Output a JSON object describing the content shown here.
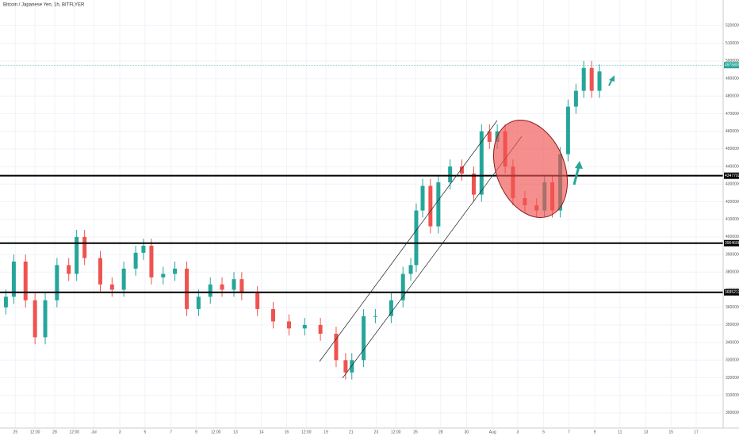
{
  "chart_data": {
    "type": "candlestick",
    "title": "Bitcoin / Japanese Yen, 1h, BITFLYER",
    "x": [
      -0.74,
      -0.12,
      0.8,
      1.54,
      2.34,
      3.26,
      4.18,
      4.8,
      5.42,
      6.65,
      7.57,
      8.49,
      9.42,
      10.03,
      10.65,
      11.57,
      12.49,
      13.42,
      14.34,
      15.26,
      16.18,
      17.11,
      17.72,
      18.95,
      20.18,
      21.42,
      22.65,
      23.88,
      25.11,
      25.85,
      26.34,
      27.26,
      28.18,
      29.42,
      30.34,
      30.95,
      31.38,
      31.88,
      32.49,
      33.11,
      34.03,
      34.95,
      35.88,
      36.49,
      37.11,
      37.72,
      38.34,
      38.95,
      39.88,
      40.8,
      41.42,
      42.03,
      42.65,
      43.26,
      43.88,
      44.49,
      45.11,
      45.72
    ],
    "open": [
      3600000,
      3660000,
      3860000,
      3640000,
      3430000,
      3640000,
      3840000,
      3790000,
      4000000,
      3880000,
      3730000,
      3700000,
      3820000,
      3910000,
      3950000,
      3770000,
      3790000,
      3820000,
      3590000,
      3660000,
      3730000,
      3700000,
      3760000,
      3680000,
      3590000,
      3520000,
      3480000,
      3500000,
      3450000,
      3300000,
      3230000,
      3300000,
      3550000,
      3550000,
      3640000,
      3790000,
      3840000,
      4150000,
      4290000,
      4060000,
      4310000,
      4400000,
      4360000,
      4240000,
      4600000,
      4540000,
      4600000,
      4400000,
      4220000,
      4180000,
      4150000,
      4310000,
      4150000,
      4470000,
      4740000,
      4830000,
      4960000,
      4830000
    ],
    "high": [
      3700000,
      3900000,
      3900000,
      3680000,
      3680000,
      3880000,
      3880000,
      4040000,
      4040000,
      3920000,
      3770000,
      3860000,
      3950000,
      3990000,
      3990000,
      3830000,
      3860000,
      3860000,
      3700000,
      3770000,
      3770000,
      3800000,
      3800000,
      3720000,
      3630000,
      3560000,
      3540000,
      3540000,
      3490000,
      3340000,
      3340000,
      3590000,
      3590000,
      3680000,
      3830000,
      3880000,
      4190000,
      4330000,
      4330000,
      4350000,
      4440000,
      4440000,
      4400000,
      4640000,
      4640000,
      4640000,
      4640000,
      4440000,
      4260000,
      4220000,
      4350000,
      4350000,
      4510000,
      4780000,
      4870000,
      5000000,
      5000000,
      4980000
    ],
    "low": [
      3560000,
      3620000,
      3600000,
      3390000,
      3390000,
      3600000,
      3750000,
      3750000,
      3840000,
      3690000,
      3660000,
      3660000,
      3780000,
      3870000,
      3730000,
      3730000,
      3750000,
      3550000,
      3550000,
      3620000,
      3660000,
      3660000,
      3640000,
      3550000,
      3480000,
      3440000,
      3440000,
      3410000,
      3260000,
      3190000,
      3190000,
      3260000,
      3510000,
      3510000,
      3600000,
      3750000,
      3800000,
      4110000,
      4020000,
      4020000,
      4270000,
      4320000,
      4200000,
      4200000,
      4500000,
      4500000,
      4360000,
      4180000,
      4140000,
      4110000,
      4110000,
      4110000,
      4110000,
      4430000,
      4700000,
      4790000,
      4790000,
      4790000
    ],
    "close": [
      3660000,
      3860000,
      3640000,
      3430000,
      3640000,
      3840000,
      3790000,
      4000000,
      3880000,
      3730000,
      3700000,
      3820000,
      3910000,
      3950000,
      3770000,
      3790000,
      3820000,
      3590000,
      3660000,
      3730000,
      3700000,
      3760000,
      3680000,
      3590000,
      3520000,
      3480000,
      3500000,
      3450000,
      3300000,
      3230000,
      3300000,
      3550000,
      3550000,
      3640000,
      3790000,
      3840000,
      4150000,
      4290000,
      4060000,
      4310000,
      4400000,
      4360000,
      4240000,
      4600000,
      4540000,
      4600000,
      4400000,
      4220000,
      4180000,
      4150000,
      4310000,
      4150000,
      4470000,
      4740000,
      4830000,
      4960000,
      4830000,
      4940000
    ],
    "up_color": "#26a69a",
    "down_color": "#ef5350",
    "xlim": [
      -1.2,
      55.4
    ],
    "ylim": [
      2914000,
      5346000
    ],
    "xticks": [
      {
        "value": 0,
        "label": "25"
      },
      {
        "value": 1.54,
        "label": "12:00"
      },
      {
        "value": 3.08,
        "label": "28"
      },
      {
        "value": 4.62,
        "label": "12:00"
      },
      {
        "value": 6.15,
        "label": "Jul"
      },
      {
        "value": 8.18,
        "label": "3"
      },
      {
        "value": 10.15,
        "label": "5"
      },
      {
        "value": 12.18,
        "label": "7"
      },
      {
        "value": 14.15,
        "label": "9"
      },
      {
        "value": 15.69,
        "label": "12:00"
      },
      {
        "value": 17.23,
        "label": "13"
      },
      {
        "value": 19.26,
        "label": "14"
      },
      {
        "value": 21.23,
        "label": "16"
      },
      {
        "value": 22.77,
        "label": "12:00"
      },
      {
        "value": 24.31,
        "label": "19"
      },
      {
        "value": 26.28,
        "label": "21"
      },
      {
        "value": 28.25,
        "label": "23"
      },
      {
        "value": 29.78,
        "label": "12:00"
      },
      {
        "value": 31.32,
        "label": "26"
      },
      {
        "value": 33.29,
        "label": "28"
      },
      {
        "value": 35.32,
        "label": "30"
      },
      {
        "value": 37.35,
        "label": "Aug"
      },
      {
        "value": 39.32,
        "label": "3"
      },
      {
        "value": 41.35,
        "label": "5"
      },
      {
        "value": 43.32,
        "label": "7"
      },
      {
        "value": 45.35,
        "label": "9"
      },
      {
        "value": 47.32,
        "label": "11"
      },
      {
        "value": 49.35,
        "label": "13"
      },
      {
        "value": 51.32,
        "label": "15"
      },
      {
        "value": 53.29,
        "label": "17"
      }
    ],
    "yticks": [
      3000000,
      3100000,
      3200000,
      3300000,
      3400000,
      3500000,
      3600000,
      3700000,
      3800000,
      3900000,
      4000000,
      4100000,
      4200000,
      4300000,
      4400000,
      4500000,
      4600000,
      4700000,
      4800000,
      4900000,
      5000000,
      5100000,
      5200000
    ],
    "levels": [
      4347702,
      3964608,
      3685213
    ],
    "last_price": 4975809,
    "grid": true
  }
}
